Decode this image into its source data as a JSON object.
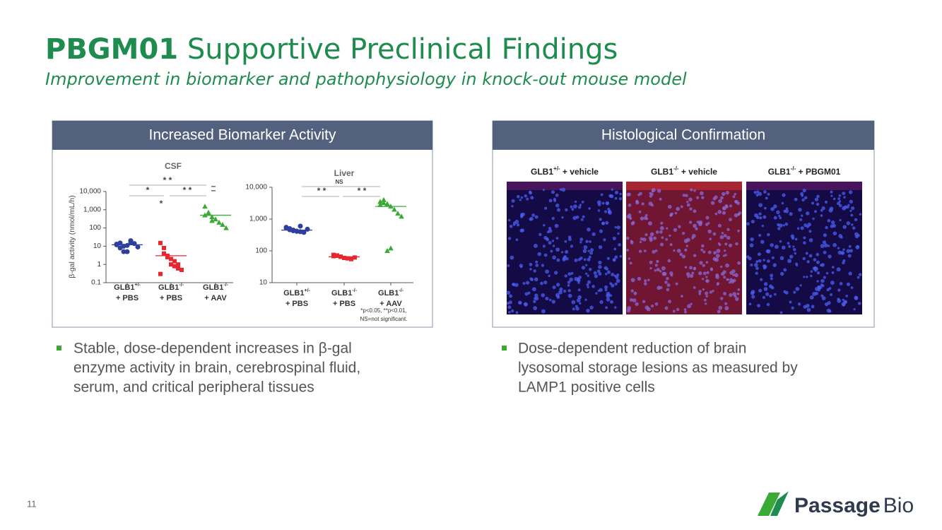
{
  "header": {
    "title_bold": "PBGM01",
    "title": "Supportive Preclinical Findings",
    "subtitle": "Improvement in biomarker and pathophysiology in knock-out mouse model"
  },
  "left_panel": {
    "heading": "Increased Biomarker Activity",
    "bullet": [
      "Stable, dose-dependent increases in β-gal",
      "enzyme activity in brain, cerebrospinal fluid,",
      "serum, and critical peripheral tissues"
    ]
  },
  "right_panel": {
    "heading": "Histological Confirmation",
    "images": [
      {
        "gene": "GLB1",
        "sup": "+/-",
        "treatment": " + vehicle"
      },
      {
        "gene": "GLB1",
        "sup": "-/-",
        "treatment": " + vehicle"
      },
      {
        "gene": "GLB1",
        "sup": "-/-",
        "treatment": " + PBGM01"
      }
    ],
    "bullet": [
      "Dose-dependent reduction of brain",
      "lysosomal storage lesions as measured by",
      "LAMP1 positive cells"
    ]
  },
  "chart_data": [
    {
      "type": "strip",
      "title": "CSF",
      "y_label": "β-gal activity (nmol/mL/h)",
      "log_y": true,
      "ylim": [
        0.1,
        10000
      ],
      "yticks": [
        {
          "value": 0.1,
          "label": "0.1"
        },
        1,
        10,
        100,
        {
          "value": 1000,
          "label": "1,000"
        },
        {
          "value": 10000,
          "label": "10,000"
        }
      ],
      "categories": [
        {
          "gene": "GLB1",
          "sup": "+/-",
          "treatment": "+ PBS"
        },
        {
          "gene": "GLB1",
          "sup": "-/-",
          "treatment": "+ PBS"
        },
        {
          "gene": "GLB1",
          "sup": "-/-",
          "treatment": "+ AAV"
        }
      ],
      "groups": [
        {
          "color": "#2e3f9e",
          "marker": "circle",
          "mean": 12,
          "values": [
            12,
            15,
            10,
            11,
            20,
            14,
            9,
            13,
            8,
            5,
            5,
            16
          ]
        },
        {
          "color": "#e8262d",
          "marker": "square",
          "mean": 3,
          "values": [
            15,
            8,
            3,
            2,
            1.5,
            1,
            0.5,
            0.3,
            4,
            2.5,
            1,
            0.8,
            0.6
          ]
        },
        {
          "color": "#3aaa35",
          "marker": "triangle",
          "mean": 500,
          "values": [
            1500,
            700,
            400,
            300,
            200,
            150,
            100,
            500,
            600,
            250
          ]
        }
      ],
      "annotations": [
        "* *",
        "*",
        "* *",
        "*",
        "–",
        "–"
      ]
    },
    {
      "type": "strip",
      "title": "Liver",
      "log_y": true,
      "ylim": [
        10,
        10000
      ],
      "yticks": [
        10,
        100,
        {
          "value": 1000,
          "label": "1,000"
        },
        {
          "value": 10000,
          "label": "10,000"
        }
      ],
      "categories": [
        {
          "gene": "GLB1",
          "sup": "+/-",
          "treatment": "+ PBS"
        },
        {
          "gene": "GLB1",
          "sup": "-/-",
          "treatment": "+ PBS"
        },
        {
          "gene": "GLB1",
          "sup": "-/-",
          "treatment": "+ AAV"
        }
      ],
      "groups": [
        {
          "color": "#2e3f9e",
          "marker": "circle",
          "mean": 450,
          "values": [
            550,
            500,
            450,
            420,
            400,
            380,
            480,
            520,
            460,
            430,
            410,
            600
          ]
        },
        {
          "color": "#e8262d",
          "marker": "square",
          "mean": 65,
          "values": [
            75,
            70,
            65,
            60,
            58,
            55,
            62,
            68,
            72,
            66
          ]
        },
        {
          "color": "#3aaa35",
          "marker": "triangle",
          "mean": 2500,
          "values": [
            3500,
            4000,
            3000,
            2500,
            2000,
            1500,
            1200,
            2800,
            3200,
            100,
            120
          ]
        }
      ],
      "annotations": [
        "NS",
        "* *",
        "* *"
      ],
      "footnote": [
        "*p<0.05, **p<0.01,",
        "NS=not significant."
      ]
    }
  ],
  "footer": {
    "page": "11",
    "logo_bold": "Passage",
    "logo": "Bio"
  }
}
